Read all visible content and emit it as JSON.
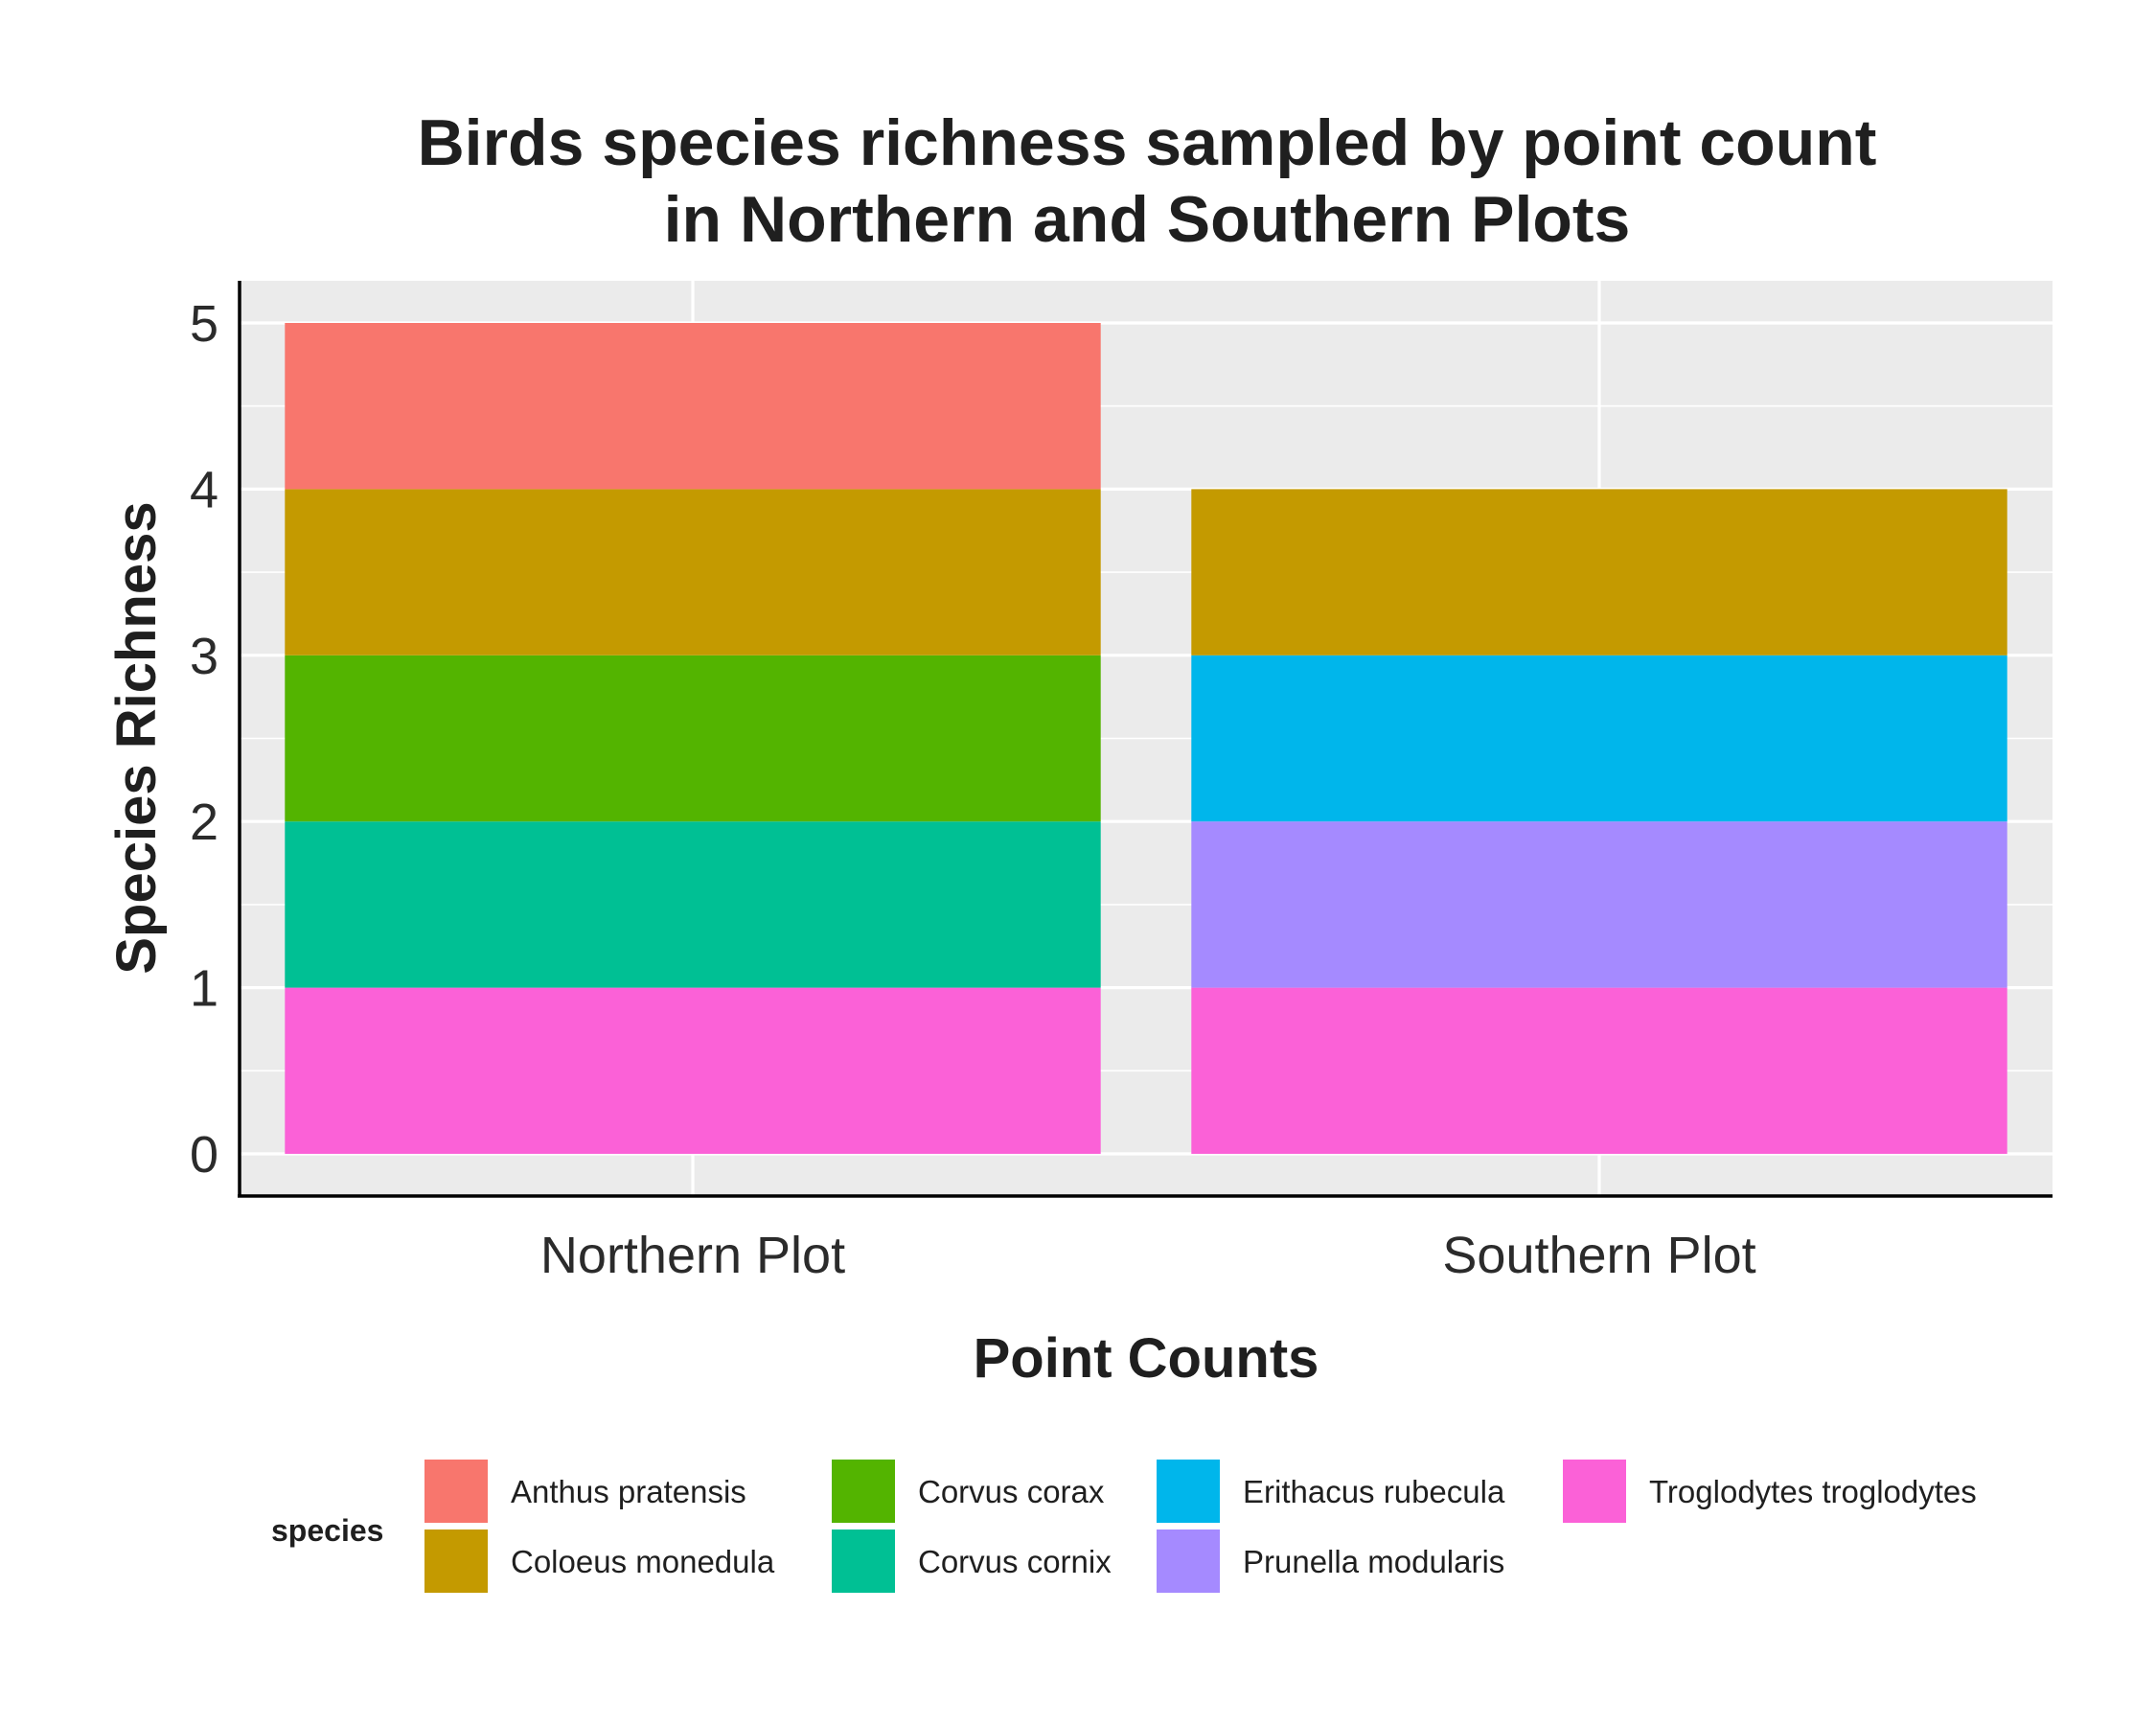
{
  "chart_data": {
    "type": "bar",
    "stacked": true,
    "title": [
      "Birds species richness sampled by point count",
      "in Northern and Southern Plots"
    ],
    "xlabel": "Point Counts",
    "ylabel": "Species Richness",
    "ylim": [
      0,
      5
    ],
    "yticks": [
      0,
      1,
      2,
      3,
      4,
      5
    ],
    "grid": true,
    "legend_position": "bottom",
    "legend_title": "species",
    "categories": [
      "Northern Plot",
      "Southern Plot"
    ],
    "series": [
      {
        "name": "Anthus pratensis",
        "color": "#F8766D",
        "values": [
          1,
          0
        ]
      },
      {
        "name": "Coloeus monedula",
        "color": "#C49A00",
        "values": [
          1,
          1
        ]
      },
      {
        "name": "Corvus corax",
        "color": "#53B400",
        "values": [
          1,
          0
        ]
      },
      {
        "name": "Corvus cornix",
        "color": "#00C094",
        "values": [
          1,
          0
        ]
      },
      {
        "name": "Erithacus rubecula",
        "color": "#00B6EB",
        "values": [
          0,
          1
        ]
      },
      {
        "name": "Prunella modularis",
        "color": "#A58AFF",
        "values": [
          0,
          1
        ]
      },
      {
        "name": "Troglodytes troglodytes",
        "color": "#FB61D7",
        "values": [
          1,
          1
        ]
      }
    ]
  }
}
